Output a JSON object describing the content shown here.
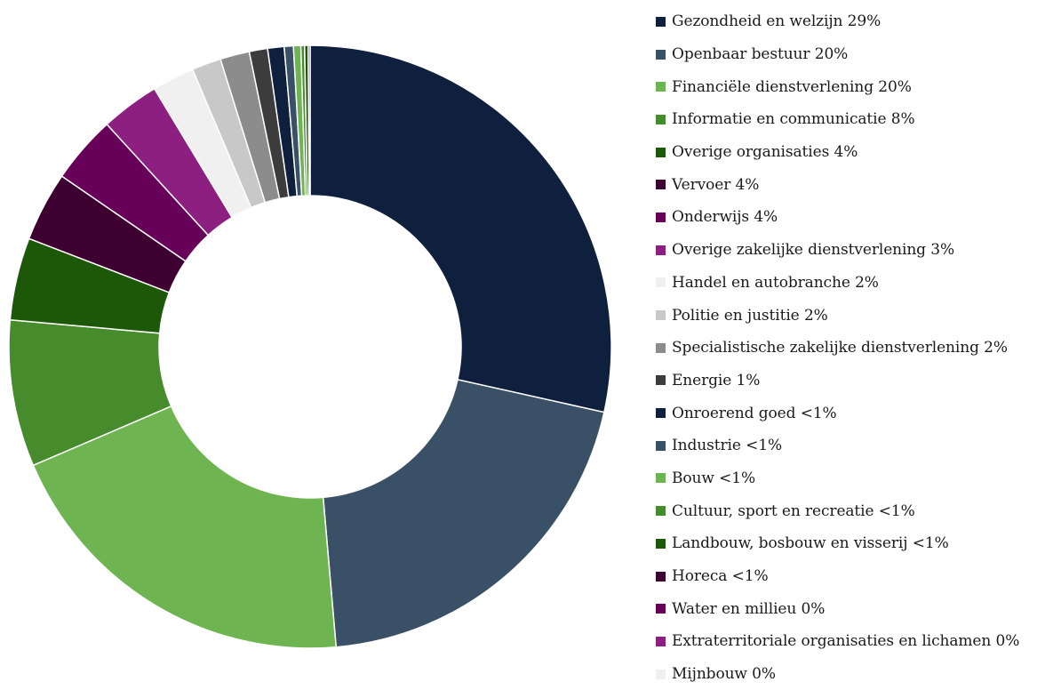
{
  "chart_data": {
    "type": "pie",
    "donut": true,
    "legend_position": "right",
    "slices": [
      {
        "label": "Gezondheid en welzijn 29%",
        "value": 29.0,
        "color": "#0f1f3e"
      },
      {
        "label": "Openbaar bestuur 20%",
        "value": 20.5,
        "color": "#3a5066"
      },
      {
        "label": "Financiële dienstverlening 20%",
        "value": 20.3,
        "color": "#6eb552"
      },
      {
        "label": "Informatie en communicatie 8%",
        "value": 8.0,
        "color": "#468c2c"
      },
      {
        "label": "Overige organisaties 4%",
        "value": 4.5,
        "color": "#1d5808"
      },
      {
        "label": "Vervoer 4%",
        "value": 3.8,
        "color": "#3d0030"
      },
      {
        "label": "Onderwijs 4%",
        "value": 3.7,
        "color": "#660058"
      },
      {
        "label": "Overige zakelijke dienstverlening 3%",
        "value": 3.2,
        "color": "#8c1f80"
      },
      {
        "label": "Handel en autobranche 2%",
        "value": 2.3,
        "color": "#f0f0f0"
      },
      {
        "label": "Politie en justitie 2%",
        "value": 1.6,
        "color": "#c8c8c8"
      },
      {
        "label": "Specialistische zakelijke dienstverlening 2%",
        "value": 1.6,
        "color": "#8c8c8c"
      },
      {
        "label": "Energie 1%",
        "value": 1.0,
        "color": "#3c3c3c"
      },
      {
        "label": "Onroerend goed <1%",
        "value": 0.9,
        "color": "#0f1f3e"
      },
      {
        "label": "Industrie <1%",
        "value": 0.5,
        "color": "#3a5066"
      },
      {
        "label": "Bouw <1%",
        "value": 0.4,
        "color": "#6eb552"
      },
      {
        "label": "Cultuur, sport en recreatie <1%",
        "value": 0.2,
        "color": "#468c2c"
      },
      {
        "label": "Landbouw, bosbouw en visserij <1%",
        "value": 0.2,
        "color": "#1d5808"
      },
      {
        "label": "Horeca <1%",
        "value": 0.1,
        "color": "#3d0030"
      },
      {
        "label": "Water en millieu 0%",
        "value": 0.0,
        "color": "#660058"
      },
      {
        "label": "Extraterritoriale organisaties en lichamen 0%",
        "value": 0.0,
        "color": "#8c1f80"
      },
      {
        "label": "Mijnbouw 0%",
        "value": 0.0,
        "color": "#f0f0f0"
      }
    ]
  }
}
